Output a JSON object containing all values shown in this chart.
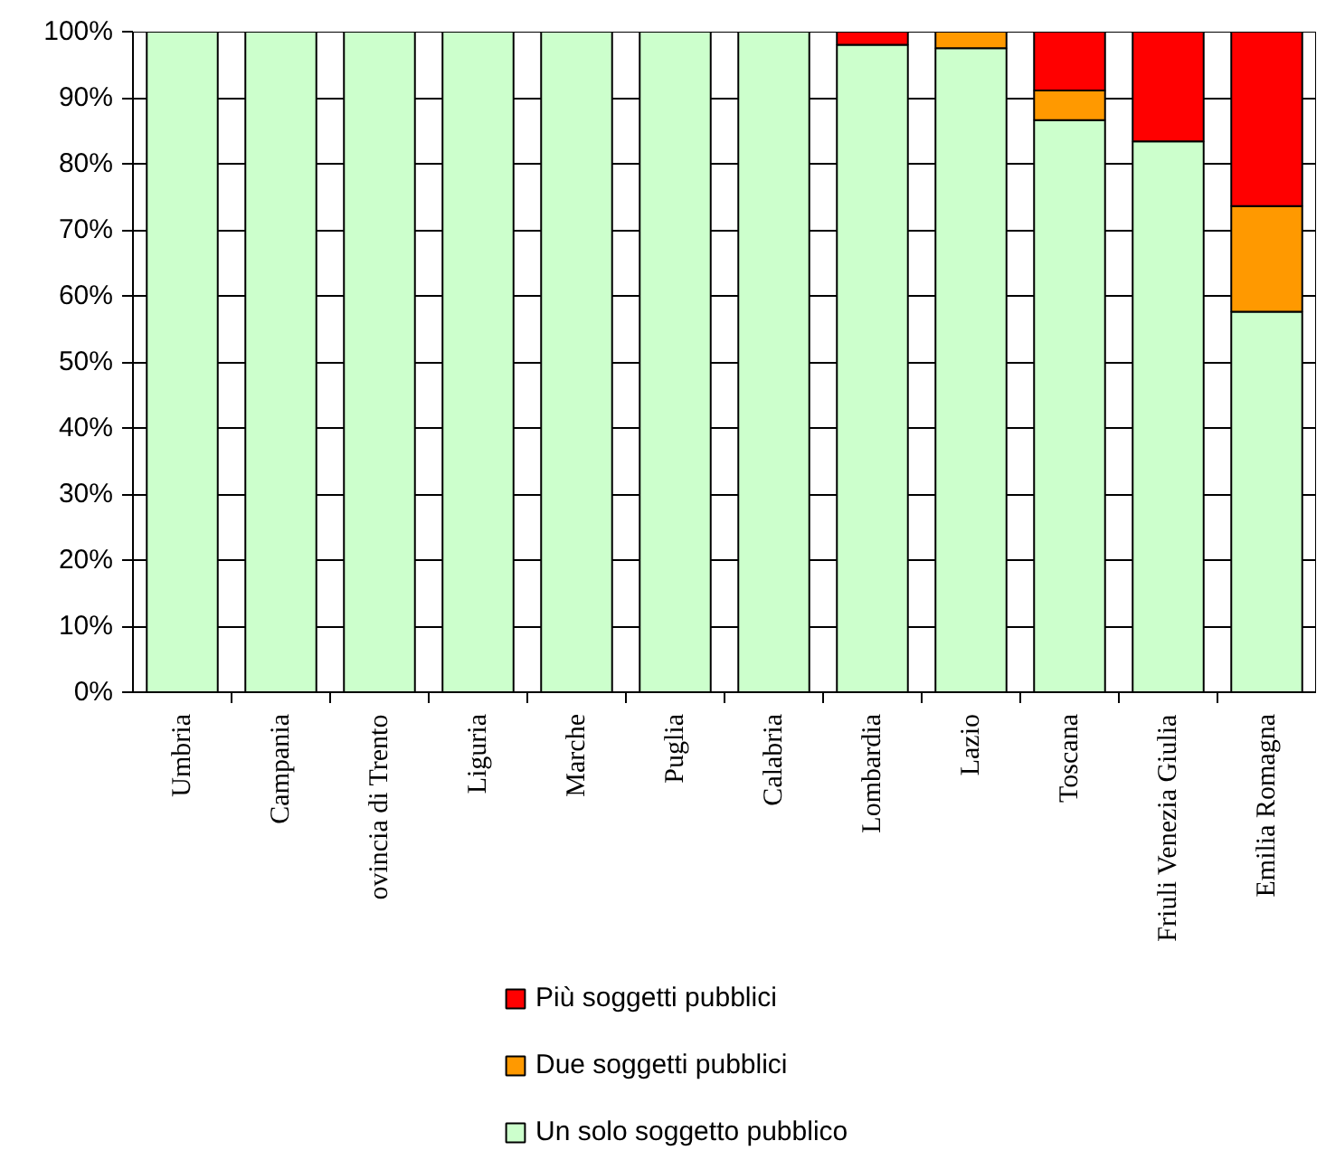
{
  "chart_data": {
    "type": "bar",
    "stacked": true,
    "categories": [
      "Umbria",
      "Campania",
      "ovincia di Trento",
      "Liguria",
      "Marche",
      "Puglia",
      "Calabria",
      "Lombardia",
      "Lazio",
      "Toscana",
      "Friuli Venezia Giulia",
      "Emilia Romagna"
    ],
    "series": [
      {
        "name": "Un solo soggetto pubblico",
        "color": "#ccffcc",
        "values": [
          100,
          100,
          100,
          100,
          100,
          100,
          100,
          98,
          97.5,
          86.6,
          83.4,
          57.6
        ]
      },
      {
        "name": "Due soggetti pubblici",
        "color": "#ff9900",
        "values": [
          0,
          0,
          0,
          0,
          0,
          0,
          0,
          0,
          2.5,
          4.5,
          0,
          16
        ]
      },
      {
        "name": "Più soggetti pubblici",
        "color": "#ff0000",
        "values": [
          0,
          0,
          0,
          0,
          0,
          0,
          0,
          2,
          0,
          8.9,
          16.6,
          26.4
        ]
      }
    ],
    "ylim": [
      0,
      100
    ],
    "yticks": [
      {
        "value": 0,
        "label": "0%"
      },
      {
        "value": 10,
        "label": "10%"
      },
      {
        "value": 20,
        "label": "20%"
      },
      {
        "value": 30,
        "label": "30%"
      },
      {
        "value": 40,
        "label": "40%"
      },
      {
        "value": 50,
        "label": "50%"
      },
      {
        "value": 60,
        "label": "60%"
      },
      {
        "value": 70,
        "label": "70%"
      },
      {
        "value": 80,
        "label": "80%"
      },
      {
        "value": 90,
        "label": "90%"
      },
      {
        "value": 100,
        "label": "100%"
      }
    ],
    "grid": "y",
    "legend": "bottom"
  }
}
